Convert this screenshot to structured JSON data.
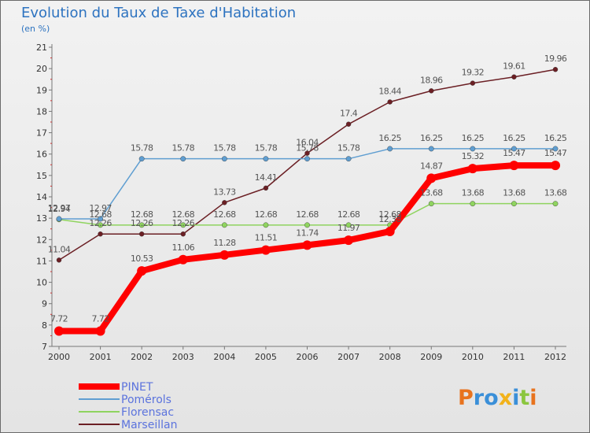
{
  "title": "Evolution du Taux de Taxe d'Habitation",
  "subtitle": "(en %)",
  "logo": {
    "text": "Proxiti",
    "colors": [
      "#e8731e",
      "#3a8fd8",
      "#3a8fd8",
      "#f2b21a",
      "#3a8fd8",
      "#8bc63f",
      "#e8731e"
    ]
  },
  "chart_data": {
    "type": "line",
    "title": "Evolution du Taux de Taxe d'Habitation",
    "ylabel": "(en %)",
    "xlabel": "",
    "x": [
      "2000",
      "2001",
      "2002",
      "2003",
      "2004",
      "2005",
      "2006",
      "2007",
      "2008",
      "2009",
      "2010",
      "2011",
      "2012"
    ],
    "ylim": [
      7,
      21
    ],
    "yticks": [
      7,
      8,
      9,
      10,
      11,
      12,
      13,
      14,
      15,
      16,
      17,
      18,
      19,
      20,
      21
    ],
    "grid": false,
    "legend_position": "bottom-left",
    "series": [
      {
        "name": "PINET",
        "color": "#ff0000",
        "values": [
          7.72,
          7.72,
          10.53,
          11.06,
          11.28,
          11.51,
          11.74,
          11.97,
          12.38,
          14.87,
          15.32,
          15.47,
          15.47
        ],
        "labels": [
          "7.72",
          "7.72",
          "10.53",
          "11.06",
          "11.28",
          "11.51",
          "11.74",
          "11.97",
          "12.38",
          "14.87",
          "15.32",
          "15.47",
          "15.47"
        ]
      },
      {
        "name": "Pomérols",
        "color": "#5f9ed1",
        "values": [
          12.97,
          12.97,
          15.78,
          15.78,
          15.78,
          15.78,
          15.78,
          15.78,
          16.25,
          16.25,
          16.25,
          16.25,
          16.25
        ],
        "labels": [
          "12.97",
          "12.97",
          "15.78",
          "15.78",
          "15.78",
          "15.78",
          "15.78",
          "15.78",
          "16.25",
          "16.25",
          "16.25",
          "16.25",
          "16.25"
        ]
      },
      {
        "name": "Florensac",
        "color": "#8fd45f",
        "values": [
          12.94,
          12.68,
          12.68,
          12.68,
          12.68,
          12.68,
          12.68,
          12.68,
          12.68,
          13.68,
          13.68,
          13.68,
          13.68
        ],
        "labels": [
          "12.94",
          "12.68",
          "12.68",
          "12.68",
          "12.68",
          "12.68",
          "12.68",
          "12.68",
          "12.68",
          "13.68",
          "13.68",
          "13.68",
          "13.68"
        ]
      },
      {
        "name": "Marseillan",
        "color": "#6b1f24",
        "values": [
          11.04,
          12.26,
          12.26,
          12.26,
          13.73,
          14.41,
          16.04,
          17.4,
          18.44,
          18.96,
          19.32,
          19.61,
          19.96
        ],
        "labels": [
          "11.04",
          "12.26",
          "12.26",
          "12.26",
          "13.73",
          "14.41",
          "16.04",
          "17.4",
          "18.44",
          "18.96",
          "19.32",
          "19.61",
          "19.96"
        ]
      }
    ]
  }
}
